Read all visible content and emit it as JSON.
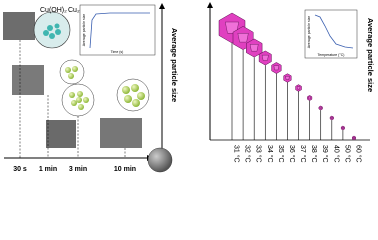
{
  "left": {
    "axis_label": "Average particle size",
    "phase_labels": [
      "Cu(OH)₂",
      "Cu₂O"
    ],
    "times": [
      "30 s",
      "1 min",
      "3 min",
      "10 min"
    ],
    "inset_x_label": "Time (s)",
    "inset_y_label": "Average particle size"
  },
  "right": {
    "axis_label": "Average particle size",
    "temperatures": [
      "31 °C",
      "32 °C",
      "33 °C",
      "34 °C",
      "35 °C",
      "36 °C",
      "37 °C",
      "38 °C",
      "39 °C",
      "40 °C",
      "50 °C",
      "60 °C"
    ],
    "inset_x_label": "Temperature (°C)",
    "inset_y_label": "Average particle size"
  }
}
